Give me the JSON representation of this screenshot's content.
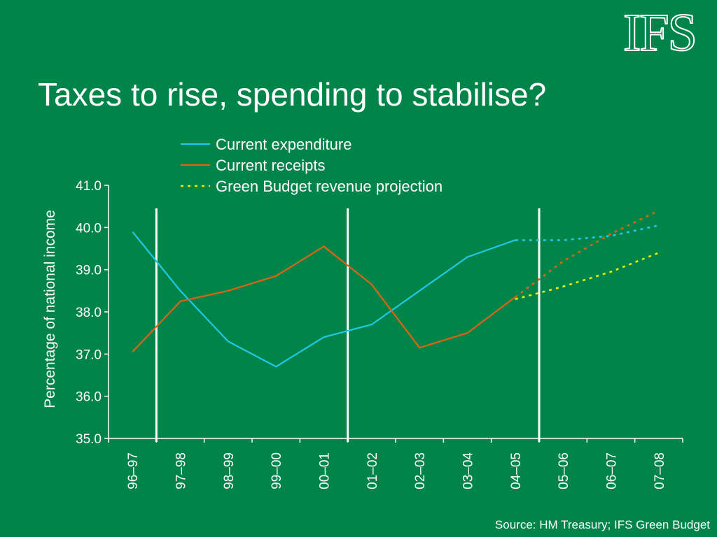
{
  "logo_text": "IFS",
  "title": "Taxes to rise, spending to stabilise?",
  "source": "Source: HM Treasury; IFS Green Budget",
  "colors": {
    "background": "#00844a",
    "current_expenditure": "#1ec8e6",
    "current_receipts": "#dc6414",
    "green_budget_projection": "#e6f000",
    "divider": "#ffffff"
  },
  "chart_data": {
    "type": "line",
    "title": "",
    "xlabel": "",
    "ylabel": "Percentage of national income",
    "ylim": [
      35.0,
      41.0
    ],
    "yticks": [
      "35.0",
      "36.0",
      "37.0",
      "38.0",
      "39.0",
      "40.0",
      "41.0"
    ],
    "categories": [
      "96–97",
      "97–98",
      "98–99",
      "99–00",
      "00–01",
      "01–02",
      "02–03",
      "03–04",
      "04–05",
      "05–06",
      "06–07",
      "07–08"
    ],
    "legend_position": "top",
    "grid": false,
    "vertical_dividers_after": [
      "96–97",
      "00–01",
      "04–05"
    ],
    "series": [
      {
        "name": "Current expenditure",
        "color_key": "current_expenditure",
        "style": "solid-then-dotted",
        "dotted_from": "04–05",
        "values": [
          39.9,
          38.5,
          37.3,
          36.7,
          37.4,
          37.7,
          38.5,
          39.3,
          39.7,
          39.7,
          39.8,
          40.05
        ]
      },
      {
        "name": "Current receipts",
        "color_key": "current_receipts",
        "style": "solid-then-dotted",
        "dotted_from": "04–05",
        "values": [
          37.05,
          38.25,
          38.5,
          38.85,
          39.55,
          38.65,
          37.15,
          37.5,
          38.35,
          39.2,
          39.85,
          40.4
        ]
      },
      {
        "name": "Green Budget revenue projection",
        "color_key": "green_budget_projection",
        "style": "dotted",
        "start_index": 8,
        "values": [
          null,
          null,
          null,
          null,
          null,
          null,
          null,
          null,
          38.3,
          38.6,
          38.95,
          39.4
        ]
      }
    ]
  }
}
